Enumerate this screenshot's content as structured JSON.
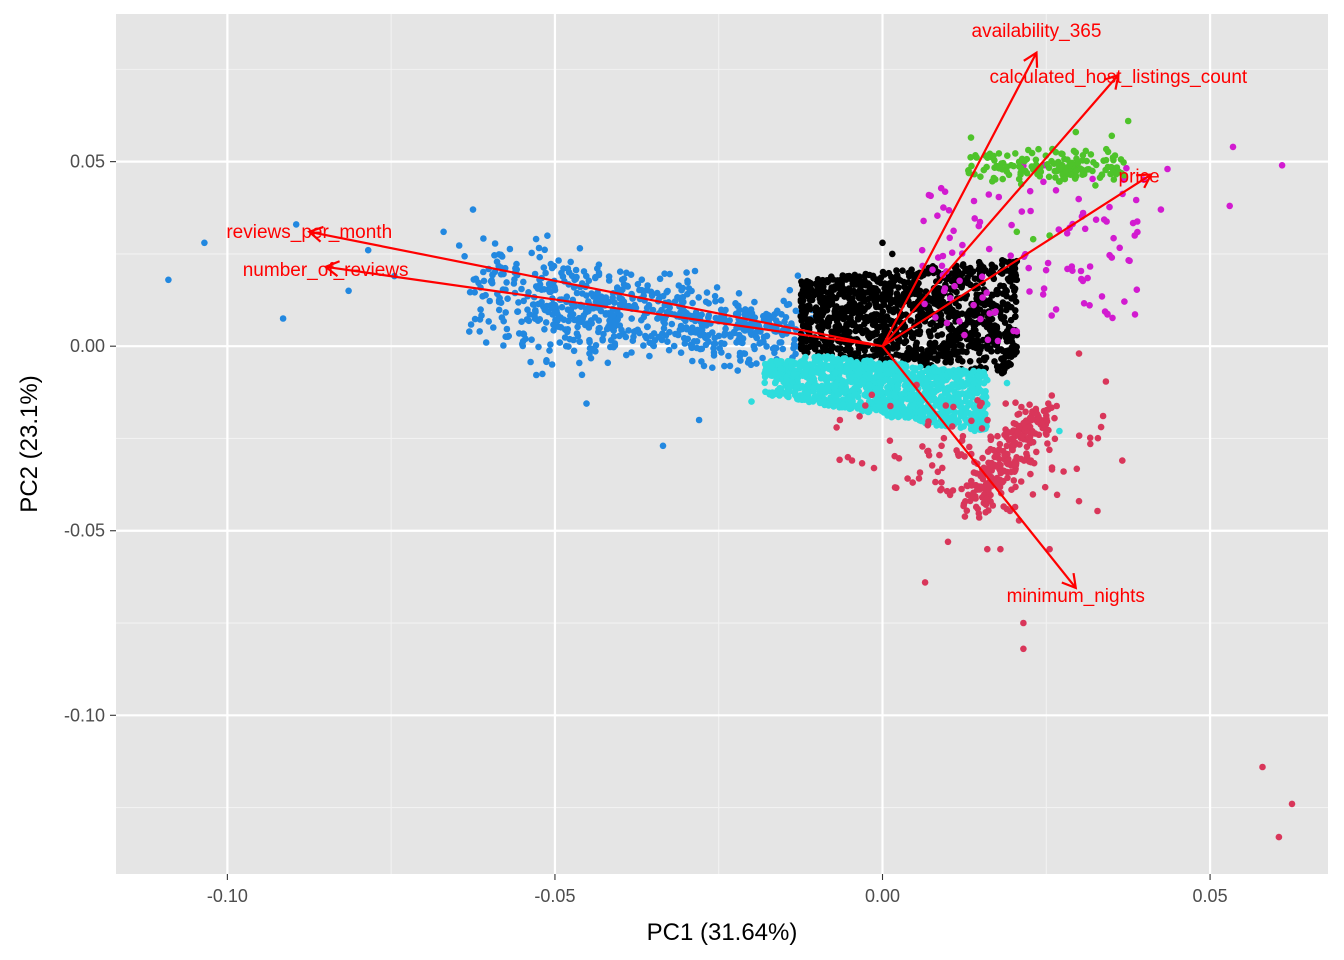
{
  "chart_data": {
    "type": "scatter",
    "title": "",
    "xlabel": "PC1 (31.64%)",
    "ylabel": "PC2 (23.1%)",
    "xlim": [
      -0.117,
      0.068
    ],
    "ylim": [
      -0.143,
      0.09
    ],
    "x_ticks": [
      -0.1,
      -0.05,
      0.0,
      0.05
    ],
    "x_tick_labels": [
      "-0.10",
      "-0.05",
      "0.00",
      "0.05"
    ],
    "y_ticks": [
      -0.1,
      -0.05,
      0.0,
      0.05
    ],
    "y_tick_labels": [
      "-0.10",
      "-0.05",
      "0.00",
      "0.05"
    ],
    "grid": true,
    "legend": "none",
    "background": "#e5e5e5",
    "arrow_color": "#ff0000",
    "arrow_origin": [
      0,
      0
    ],
    "loadings": [
      {
        "label": "availability_365",
        "x": 0.0235,
        "y": 0.0795
      },
      {
        "label": "calculated_host_listings_count",
        "x": 0.036,
        "y": 0.0735
      },
      {
        "label": "price",
        "x": 0.041,
        "y": 0.0465
      },
      {
        "label": "reviews_per_month",
        "x": -0.0875,
        "y": 0.031
      },
      {
        "label": "number_of_reviews",
        "x": -0.085,
        "y": 0.0215
      },
      {
        "label": "minimum_nights",
        "x": 0.0295,
        "y": -0.0655
      }
    ],
    "clusters": [
      {
        "color": "#2288e0",
        "cx": -0.025,
        "cy": 0.002,
        "sx": 0.014,
        "sy": 0.01,
        "n": 700,
        "points": [
          [
            -0.109,
            0.018
          ],
          [
            -0.1035,
            0.028
          ],
          [
            -0.0895,
            0.033
          ],
          [
            -0.0915,
            0.0075
          ],
          [
            -0.0625,
            0.037
          ],
          [
            -0.0335,
            -0.027
          ],
          [
            -0.028,
            -0.02
          ],
          [
            -0.067,
            0.031
          ],
          [
            -0.0785,
            0.026
          ],
          [
            -0.0605,
            0.001
          ],
          [
            -0.0545,
            0.002
          ],
          [
            -0.0745,
            0.019
          ],
          [
            -0.0815,
            0.015
          ]
        ]
      },
      {
        "color": "#000000",
        "cx": 0.0055,
        "cy": 0.0095,
        "sx": 0.0085,
        "sy": 0.0055,
        "n": 1200,
        "points": [
          [
            0.0,
            0.028
          ],
          [
            0.0015,
            0.025
          ],
          [
            0.0205,
            0.018
          ]
        ]
      },
      {
        "color": "#2edddd",
        "cx": -0.002,
        "cy": -0.01,
        "sx": 0.0085,
        "sy": 0.0045,
        "n": 1200,
        "points": [
          [
            0.027,
            -0.023
          ],
          [
            0.023,
            -0.026
          ],
          [
            -0.02,
            -0.015
          ],
          [
            0.019,
            -0.01
          ]
        ]
      },
      {
        "color": "#d9365a",
        "cx": 0.017,
        "cy": -0.031,
        "sx": 0.0075,
        "sy": 0.0075,
        "n": 320,
        "points": [
          [
            0.03,
            -0.002
          ],
          [
            0.03,
            -0.042
          ],
          [
            0.0255,
            -0.055
          ],
          [
            0.0065,
            -0.064
          ],
          [
            0.016,
            -0.055
          ],
          [
            0.018,
            -0.055
          ],
          [
            0.01,
            -0.053
          ],
          [
            0.0215,
            -0.082
          ],
          [
            0.0215,
            -0.075
          ],
          [
            0.058,
            -0.114
          ],
          [
            0.0625,
            -0.124
          ],
          [
            0.0605,
            -0.133
          ],
          [
            -0.0065,
            -0.02
          ],
          [
            -0.0035,
            -0.019
          ],
          [
            -0.007,
            -0.022
          ]
        ]
      },
      {
        "color": "#d21bd0",
        "cx": 0.025,
        "cy": 0.023,
        "sx": 0.01,
        "sy": 0.008,
        "n": 110,
        "points": [
          [
            0.0535,
            0.054
          ],
          [
            0.053,
            0.038
          ],
          [
            0.061,
            0.049
          ],
          [
            0.0435,
            0.048
          ],
          [
            0.0425,
            0.037
          ],
          [
            0.0385,
            0.03
          ],
          [
            0.035,
            0.024
          ],
          [
            0.0335,
            0.0135
          ],
          [
            0.0205,
            0.004
          ],
          [
            0.0125,
            0.003
          ],
          [
            0.0085,
            0.024
          ]
        ]
      },
      {
        "color": "#4ec32a",
        "cx": 0.025,
        "cy": 0.0485,
        "sx": 0.0055,
        "sy": 0.0022,
        "n": 160,
        "points": [
          [
            0.0375,
            0.061
          ],
          [
            0.035,
            0.057
          ],
          [
            0.0295,
            0.058
          ],
          [
            0.0135,
            0.0565
          ],
          [
            0.023,
            0.029
          ],
          [
            0.0255,
            0.03
          ],
          [
            0.0205,
            0.031
          ]
        ]
      }
    ]
  }
}
